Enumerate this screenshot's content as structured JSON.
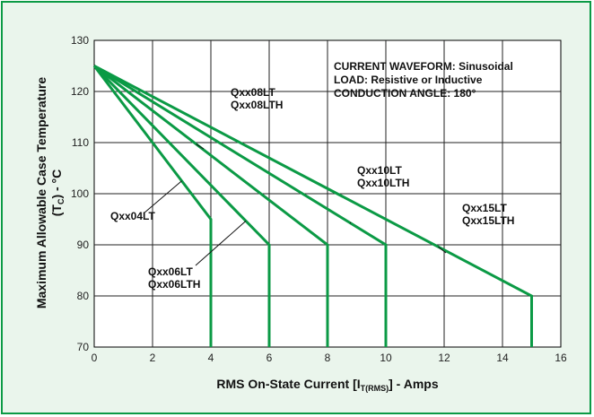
{
  "chart_data": {
    "type": "line",
    "title": "",
    "xlabel": {
      "main": "RMS On-State Current [I",
      "sub": "T(RMS)",
      "tail": "] - Amps"
    },
    "ylabel": {
      "main": "Maximum Allowable Case Temperature",
      "line2_pre": "(T",
      "line2_sub": "C",
      "line2_post": ") - °C"
    },
    "xlim": [
      0,
      16
    ],
    "ylim": [
      70,
      130
    ],
    "x_ticks": [
      0,
      2,
      4,
      6,
      8,
      10,
      12,
      14,
      16
    ],
    "y_ticks": [
      70,
      80,
      90,
      100,
      110,
      120,
      130
    ],
    "grid": true,
    "line_color": "#0b9a45",
    "annotation_lines": [
      "CURRENT WAVEFORM: Sinusoidal",
      "LOAD: Resistive or Inductive",
      "CONDUCTION ANGLE: 180°"
    ],
    "series": [
      {
        "label_lines": [
          "Qxx04LT"
        ],
        "x": [
          0,
          4,
          4
        ],
        "y": [
          125,
          95,
          70
        ],
        "leader_at_x": 3
      },
      {
        "label_lines": [
          "Qxx06LT",
          "Qxx06LTH"
        ],
        "x": [
          0,
          6,
          6
        ],
        "y": [
          125,
          90,
          70
        ],
        "leader_at_x": 5.2
      },
      {
        "label_lines": [
          "Qxx08LT",
          "Qxx08LTH"
        ],
        "x": [
          0,
          8,
          8
        ],
        "y": [
          125,
          90,
          70
        ],
        "leader_at_x": 3.5
      },
      {
        "label_lines": [
          "Qxx10LT",
          "Qxx10LTH"
        ],
        "x": [
          0,
          10,
          10
        ],
        "y": [
          125,
          90,
          70
        ],
        "leader_at_x": 8.8
      },
      {
        "label_lines": [
          "Qxx15LT",
          "Qxx15LTH"
        ],
        "x": [
          0,
          15,
          15
        ],
        "y": [
          125,
          80,
          70
        ],
        "leader_at_x": 11.8
      }
    ]
  }
}
